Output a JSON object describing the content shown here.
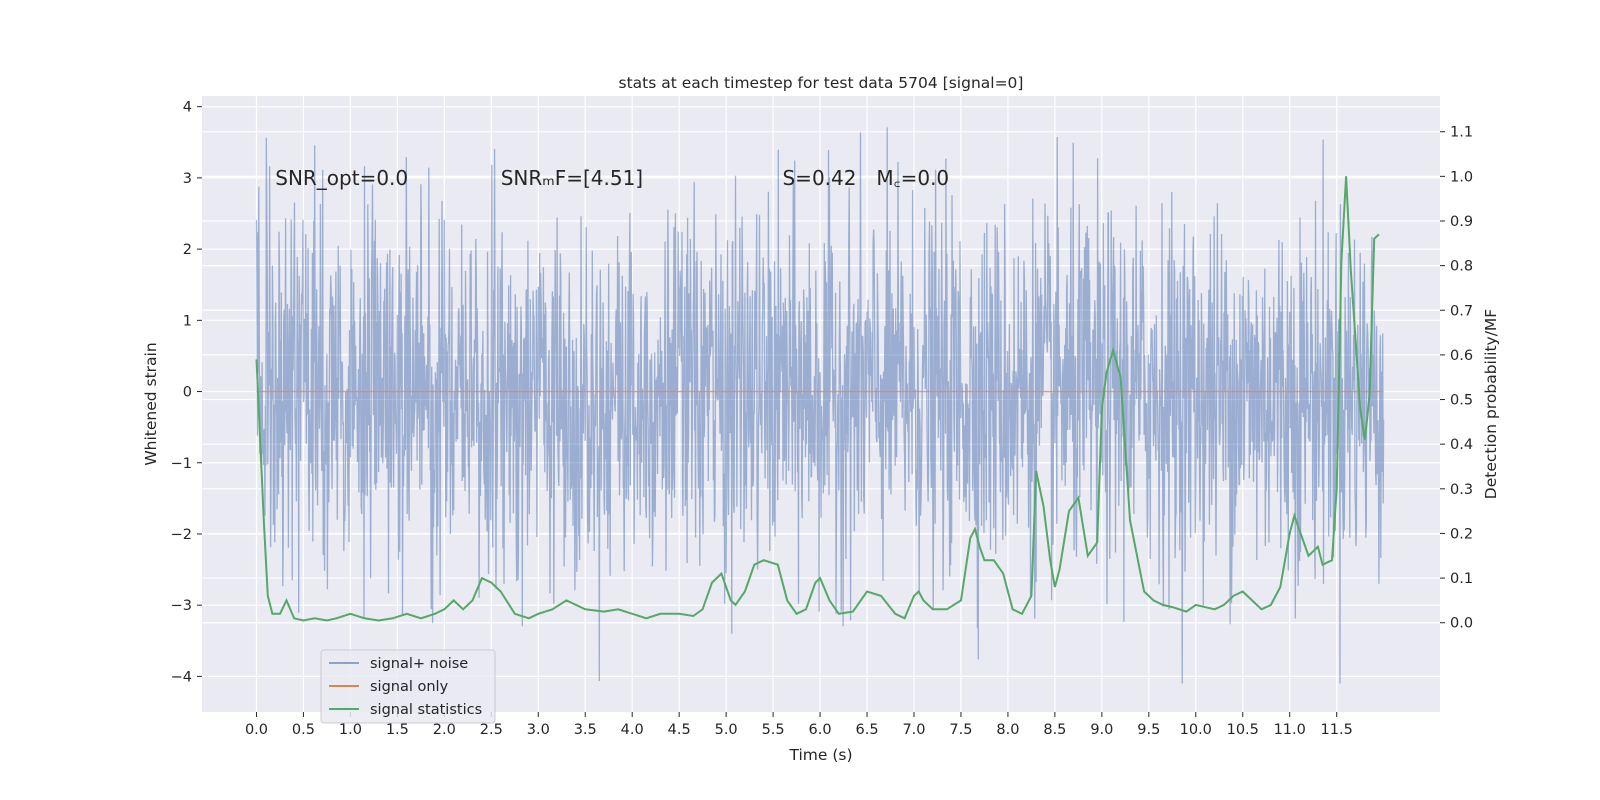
{
  "chart_data": {
    "type": "line",
    "title": "stats at each timestep for test data 5704 [signal=0]",
    "xlabel": "Time (s)",
    "ylabel": "Whitened strain",
    "y2label": "Detection probability/MF",
    "xlim": [
      -0.58,
      12.6
    ],
    "ylim": [
      -4.5,
      4.15
    ],
    "y2lim": [
      -0.2,
      1.18
    ],
    "x_ticks": [
      0.0,
      0.5,
      1.0,
      1.5,
      2.0,
      2.5,
      3.0,
      3.5,
      4.0,
      4.5,
      5.0,
      5.5,
      6.0,
      6.5,
      7.0,
      7.5,
      8.0,
      8.5,
      9.0,
      9.5,
      10.0,
      10.5,
      11.0,
      11.5
    ],
    "x_tick_labels": [
      "0.0",
      "0.5",
      "1.0",
      "1.5",
      "2.0",
      "2.5",
      "3.0",
      "3.5",
      "4.0",
      "4.5",
      "5.0",
      "5.5",
      "6.0",
      "6.5",
      "7.0",
      "7.5",
      "8.0",
      "8.5",
      "9.0",
      "9.5",
      "10.0",
      "10.5",
      "11.0",
      "11.5"
    ],
    "y_ticks": [
      -4,
      -3,
      -2,
      -1,
      0,
      1,
      2,
      3,
      4
    ],
    "y_tick_labels": [
      "−4",
      "−3",
      "−2",
      "−1",
      "0",
      "1",
      "2",
      "3",
      "4"
    ],
    "y2_ticks": [
      0.0,
      0.1,
      0.2,
      0.3,
      0.4,
      0.5,
      0.6,
      0.7,
      0.8,
      0.9,
      1.0,
      1.1
    ],
    "y2_tick_labels": [
      "0.0",
      "0.1",
      "0.2",
      "0.3",
      "0.4",
      "0.5",
      "0.6",
      "0.7",
      "0.8",
      "0.9",
      "1.0",
      "1.1"
    ],
    "series": [
      {
        "name": "signal+ noise",
        "color": "#4c72b0",
        "opacity": 0.5,
        "axis": "left",
        "note": "dense gaussian noise trace, 0.0 s to 12.0 s, roughly within ±2.5 with spikes to ±3.8",
        "x_range": [
          0.0,
          12.0
        ],
        "envelope_typical": 2.3
      },
      {
        "name": "signal only",
        "color": "#dd8452",
        "axis": "left",
        "x": [
          0.0,
          12.0
        ],
        "y": [
          0.0,
          0.0
        ]
      },
      {
        "name": "signal statistics",
        "color": "#55a868",
        "axis": "right",
        "x": [
          0.0,
          0.08,
          0.12,
          0.17,
          0.25,
          0.32,
          0.4,
          0.5,
          0.62,
          0.75,
          0.85,
          1.0,
          1.15,
          1.3,
          1.45,
          1.6,
          1.75,
          1.9,
          2.0,
          2.1,
          2.2,
          2.3,
          2.4,
          2.5,
          2.6,
          2.75,
          2.9,
          3.0,
          3.15,
          3.3,
          3.5,
          3.7,
          3.85,
          4.0,
          4.15,
          4.3,
          4.5,
          4.65,
          4.75,
          4.85,
          4.95,
          5.05,
          5.1,
          5.2,
          5.3,
          5.4,
          5.55,
          5.65,
          5.75,
          5.85,
          5.95,
          6.0,
          6.1,
          6.2,
          6.35,
          6.5,
          6.65,
          6.8,
          6.9,
          7.0,
          7.05,
          7.1,
          7.2,
          7.35,
          7.5,
          7.6,
          7.65,
          7.7,
          7.75,
          7.85,
          7.95,
          8.05,
          8.15,
          8.25,
          8.3,
          8.38,
          8.45,
          8.5,
          8.55,
          8.65,
          8.75,
          8.85,
          8.95,
          9.0,
          9.05,
          9.12,
          9.2,
          9.3,
          9.45,
          9.55,
          9.65,
          9.75,
          9.9,
          10.0,
          10.2,
          10.3,
          10.4,
          10.5,
          10.6,
          10.7,
          10.8,
          10.9,
          11.0,
          11.05,
          11.2,
          11.3,
          11.35,
          11.45,
          11.5,
          11.55,
          11.6,
          11.65,
          11.75,
          11.8,
          11.85,
          11.9,
          11.95
        ],
        "y": [
          0.59,
          0.22,
          0.06,
          0.02,
          0.02,
          0.05,
          0.01,
          0.005,
          0.01,
          0.005,
          0.01,
          0.02,
          0.01,
          0.005,
          0.01,
          0.02,
          0.01,
          0.02,
          0.03,
          0.05,
          0.03,
          0.05,
          0.1,
          0.09,
          0.07,
          0.02,
          0.01,
          0.02,
          0.03,
          0.05,
          0.03,
          0.025,
          0.03,
          0.02,
          0.01,
          0.02,
          0.02,
          0.015,
          0.03,
          0.09,
          0.11,
          0.05,
          0.04,
          0.07,
          0.13,
          0.14,
          0.13,
          0.05,
          0.02,
          0.03,
          0.09,
          0.1,
          0.05,
          0.02,
          0.025,
          0.07,
          0.06,
          0.02,
          0.01,
          0.06,
          0.07,
          0.05,
          0.03,
          0.03,
          0.05,
          0.19,
          0.21,
          0.17,
          0.14,
          0.14,
          0.11,
          0.03,
          0.02,
          0.06,
          0.34,
          0.26,
          0.14,
          0.08,
          0.12,
          0.25,
          0.28,
          0.15,
          0.18,
          0.48,
          0.56,
          0.61,
          0.55,
          0.23,
          0.07,
          0.05,
          0.04,
          0.035,
          0.025,
          0.04,
          0.03,
          0.04,
          0.06,
          0.07,
          0.05,
          0.03,
          0.04,
          0.08,
          0.2,
          0.24,
          0.15,
          0.17,
          0.13,
          0.14,
          0.3,
          0.81,
          1.0,
          0.79,
          0.48,
          0.41,
          0.51,
          0.86,
          0.87
        ]
      }
    ],
    "annotations": [
      {
        "name": "snr-opt",
        "text": "SNR_opt=0.0",
        "x": 0.2,
        "y": 3.0
      },
      {
        "name": "snr-mf",
        "text": "SNRₘF=[4.51]",
        "x": 2.6,
        "y": 3.0
      },
      {
        "name": "s-value",
        "text": "S=0.42",
        "x": 5.6,
        "y": 3.0
      },
      {
        "name": "mc-value",
        "text": "M꜀=0.0",
        "x": 6.6,
        "y": 3.0
      }
    ],
    "legend": {
      "placement": "lower-left",
      "entries": [
        "signal+ noise",
        "signal only",
        "signal statistics"
      ]
    },
    "grid": true
  }
}
